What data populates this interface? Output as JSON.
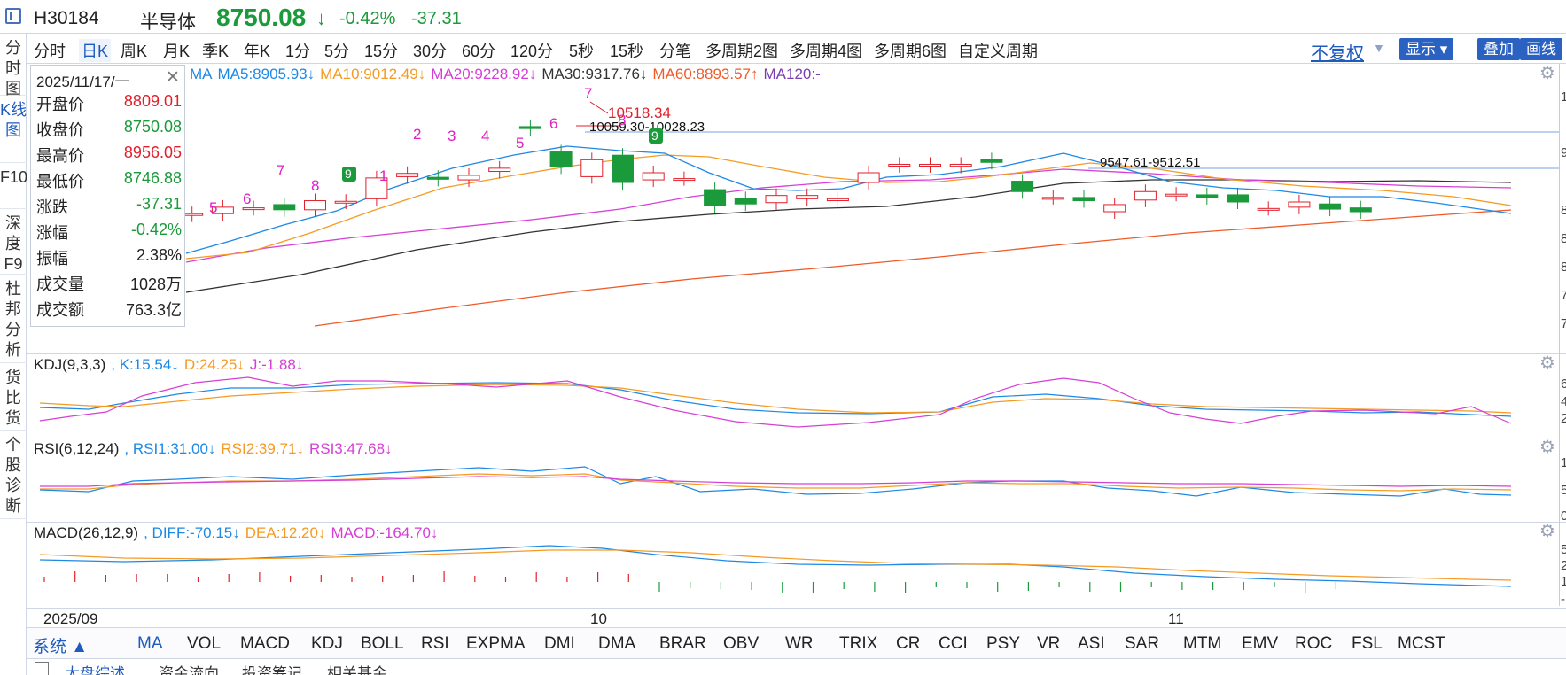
{
  "header": {
    "code": "H30184",
    "name": "半导体",
    "price": "8750.08",
    "arrow": "↓",
    "change_pct": "-0.42%",
    "change": "-37.31",
    "up_color": "#e0202a",
    "down_color": "#1a9a3b"
  },
  "sidebar": {
    "items": [
      {
        "label": "分时图"
      },
      {
        "label": "K线图"
      },
      {
        "label": "F10"
      },
      {
        "label": "深度F9"
      },
      {
        "label": "杜邦分析"
      },
      {
        "label": "货比货"
      },
      {
        "label": "个股诊断"
      }
    ],
    "active_index": 1
  },
  "toolbar": {
    "periods": [
      "分时",
      "日K",
      "周K",
      "月K",
      "季K",
      "年K",
      "1分",
      "5分",
      "15分",
      "30分",
      "60分",
      "120分",
      "5秒",
      "15秒",
      "分笔",
      "多周期2图",
      "多周期4图",
      "多周期6图",
      "自定义周期"
    ],
    "active_period": "日K",
    "fq_label": "不复权",
    "show_label": "显示 ▾",
    "overlay_label": "叠加",
    "draw_label": "画线",
    "refresh_icon": "refresh-icon"
  },
  "info_panel": {
    "date": "2025/11/17/一",
    "rows": [
      {
        "key": "开盘价",
        "value": "8809.01",
        "color": "#e0202a"
      },
      {
        "key": "收盘价",
        "value": "8750.08",
        "color": "#1a9a3b"
      },
      {
        "key": "最高价",
        "value": "8956.05",
        "color": "#e0202a"
      },
      {
        "key": "最低价",
        "value": "8746.88",
        "color": "#1a9a3b"
      },
      {
        "key": "涨跌",
        "value": "-37.31",
        "color": "#1a9a3b"
      },
      {
        "key": "涨幅",
        "value": "-0.42%",
        "color": "#1a9a3b"
      },
      {
        "key": "振幅",
        "value": "2.38%",
        "color": "#222222"
      },
      {
        "key": "成交量",
        "value": "1028万",
        "color": "#222222"
      },
      {
        "key": "成交额",
        "value": "763.3亿",
        "color": "#222222"
      }
    ]
  },
  "main_pane": {
    "ma_labels": [
      {
        "text": "MA",
        "color": "#1e88e5"
      },
      {
        "text": "MA5:8905.93↓",
        "color": "#1e88e5"
      },
      {
        "text": "MA10:9012.49↓",
        "color": "#f59a23"
      },
      {
        "text": "MA20:9228.92↓",
        "color": "#d63fd6"
      },
      {
        "text": "MA30:9317.76↓",
        "color": "#333333"
      },
      {
        "text": "MA60:8893.57↑",
        "color": "#ef5a28"
      },
      {
        "text": "MA120:-",
        "color": "#7b3fb2"
      }
    ],
    "high_annotation": "10518.34",
    "range_label_1": "10059.30-10028.23",
    "range_label_2": "9547.61-9512.51",
    "seq_numbers": [
      "5",
      "6",
      "7",
      "8",
      "9",
      "1",
      "2",
      "3",
      "4",
      "5",
      "6",
      "7",
      "8",
      "9"
    ],
    "right_axis_edge": [
      "1",
      "9",
      "8",
      "8",
      "8",
      "7",
      "7"
    ]
  },
  "kdj_pane": {
    "labels": [
      {
        "text": "KDJ(9,3,3)",
        "color": "#222222"
      },
      {
        "text": ", K:15.54↓",
        "color": "#1e88e5"
      },
      {
        "text": "D:24.25↓",
        "color": "#f59a23"
      },
      {
        "text": "J:-1.88↓",
        "color": "#d63fd6"
      }
    ],
    "right_axis_edge": [
      "6",
      "4",
      "2"
    ]
  },
  "rsi_pane": {
    "labels": [
      {
        "text": "RSI(6,12,24)",
        "color": "#222222"
      },
      {
        "text": ", RSI1:31.00↓",
        "color": "#1e88e5"
      },
      {
        "text": "RSI2:39.71↓",
        "color": "#f59a23"
      },
      {
        "text": "RSI3:47.68↓",
        "color": "#d63fd6"
      }
    ],
    "right_axis_edge": [
      "1",
      "5",
      "0"
    ]
  },
  "macd_pane": {
    "labels": [
      {
        "text": "MACD(26,12,9)",
        "color": "#222222"
      },
      {
        "text": ", DIFF:-70.15↓",
        "color": "#1e88e5"
      },
      {
        "text": "DEA:12.20↓",
        "color": "#f59a23"
      },
      {
        "text": "MACD:-164.70↓",
        "color": "#d63fd6"
      }
    ],
    "right_axis_edge": [
      "5",
      "2",
      "1",
      "-"
    ]
  },
  "date_axis": [
    "2025/09",
    "10",
    "11"
  ],
  "indicator_bar": {
    "system_label": "系统 ▲",
    "tabs": [
      "MA",
      "VOL",
      "MACD",
      "KDJ",
      "BOLL",
      "RSI",
      "EXPMA",
      "DMI",
      "DMA",
      "BRAR",
      "OBV",
      "WR",
      "TRIX",
      "CR",
      "CCI",
      "PSY",
      "VR",
      "ASI",
      "SAR",
      "MTM",
      "EMV",
      "ROC",
      "FSL",
      "MCST"
    ],
    "active_tab": "MA"
  },
  "bottom_tabs": [
    "大盘综述",
    "资金流向",
    "投资筹记",
    "相关基金"
  ],
  "chart_data": {
    "type": "candlestick",
    "candles": [
      {
        "o": 8740,
        "c": 8810
      },
      {
        "o": 8700,
        "c": 8720
      },
      {
        "o": 8720,
        "c": 8820
      },
      {
        "o": 8800,
        "c": 8810
      },
      {
        "o": 8860,
        "c": 8780
      },
      {
        "o": 8780,
        "c": 8920
      },
      {
        "o": 8900,
        "c": 8910
      },
      {
        "o": 8950,
        "c": 9270
      },
      {
        "o": 9290,
        "c": 9340
      },
      {
        "o": 9280,
        "c": 9250
      },
      {
        "o": 9240,
        "c": 9310
      },
      {
        "o": 9370,
        "c": 9420
      },
      {
        "o": 10060,
        "c": 10030
      },
      {
        "o": 9670,
        "c": 9440
      },
      {
        "o": 9290,
        "c": 9550
      },
      {
        "o": 9620,
        "c": 9200
      },
      {
        "o": 9240,
        "c": 9350
      },
      {
        "o": 9260,
        "c": 9260
      },
      {
        "o": 9090,
        "c": 8840
      },
      {
        "o": 8950,
        "c": 8870
      },
      {
        "o": 8890,
        "c": 9000
      },
      {
        "o": 8950,
        "c": 9000
      },
      {
        "o": 8920,
        "c": 8950
      },
      {
        "o": 9200,
        "c": 9350
      },
      {
        "o": 9460,
        "c": 9480
      },
      {
        "o": 9460,
        "c": 9480
      },
      {
        "o": 9450,
        "c": 9480
      },
      {
        "o": 9550,
        "c": 9510
      },
      {
        "o": 9220,
        "c": 9060
      },
      {
        "o": 8970,
        "c": 8970
      },
      {
        "o": 8970,
        "c": 8920
      },
      {
        "o": 8750,
        "c": 8860
      },
      {
        "o": 8930,
        "c": 9060
      },
      {
        "o": 9020,
        "c": 9020
      },
      {
        "o": 9010,
        "c": 8970
      },
      {
        "o": 9010,
        "c": 8900
      },
      {
        "o": 8800,
        "c": 8800
      },
      {
        "o": 8820,
        "c": 8900
      },
      {
        "o": 8870,
        "c": 8790
      },
      {
        "o": 8809.01,
        "c": 8750.08
      }
    ]
  }
}
